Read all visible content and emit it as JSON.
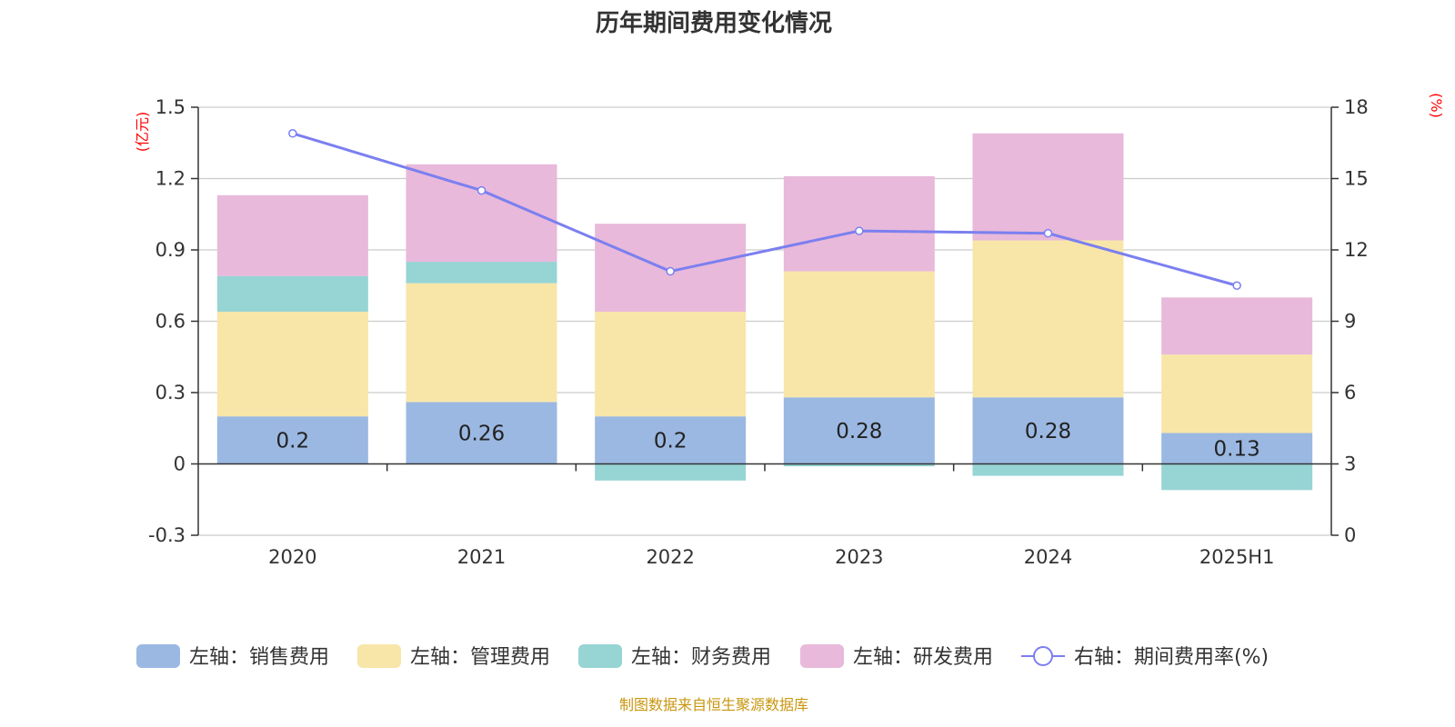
{
  "chart_data": {
    "type": "bar",
    "title": "历年期间费用变化情况",
    "categories": [
      "2020",
      "2021",
      "2022",
      "2023",
      "2024",
      "2025H1"
    ],
    "left_axis": {
      "unit": "(亿元)",
      "ylim": [
        -0.3,
        1.5
      ],
      "ticks": [
        "-0.3",
        "0",
        "0.3",
        "0.6",
        "0.9",
        "1.2",
        "1.5"
      ]
    },
    "right_axis": {
      "unit": "(%)",
      "ylim": [
        0,
        18
      ],
      "ticks": [
        "0",
        "3",
        "6",
        "9",
        "12",
        "15",
        "18"
      ]
    },
    "grid": true,
    "legend_position": "bottom",
    "series": [
      {
        "name": "左轴：销售费用",
        "axis": "left",
        "stack": true,
        "color": "#9bb8e2",
        "values": [
          0.2,
          0.26,
          0.2,
          0.28,
          0.28,
          0.13
        ],
        "labels": [
          "0.2",
          "0.26",
          "0.2",
          "0.28",
          "0.28",
          "0.13"
        ]
      },
      {
        "name": "左轴：管理费用",
        "axis": "left",
        "stack": true,
        "color": "#f8e6a8",
        "values": [
          0.44,
          0.5,
          0.44,
          0.53,
          0.66,
          0.33
        ]
      },
      {
        "name": "左轴：财务费用",
        "axis": "left",
        "stack": true,
        "color": "#97d4d4",
        "values": [
          0.15,
          0.09,
          -0.07,
          -0.01,
          -0.05,
          -0.11
        ]
      },
      {
        "name": "左轴：研发费用",
        "axis": "left",
        "stack": true,
        "color": "#e8b9da",
        "values": [
          0.34,
          0.41,
          0.37,
          0.4,
          0.45,
          0.24
        ]
      },
      {
        "name": "右轴：期间费用率(%)",
        "axis": "right",
        "type": "line",
        "color": "#7b7ff0",
        "values": [
          16.9,
          14.5,
          11.1,
          12.8,
          12.7,
          10.5
        ]
      }
    ]
  },
  "source": "制图数据来自恒生聚源数据库"
}
